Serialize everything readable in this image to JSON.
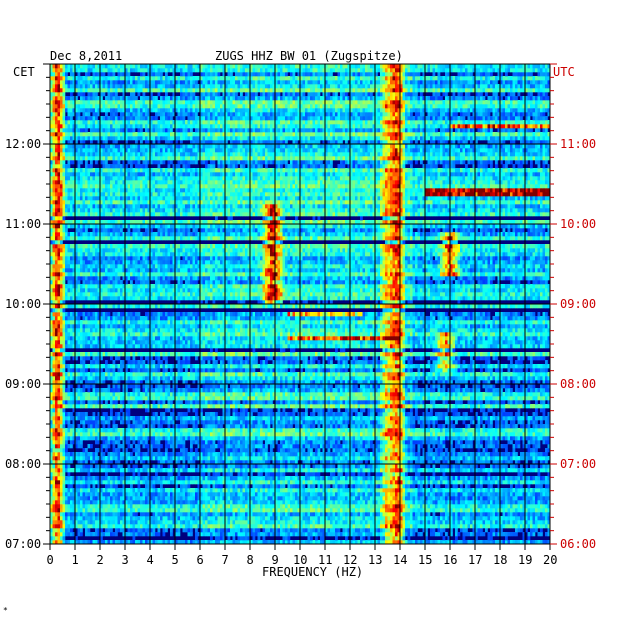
{
  "chart_data": {
    "type": "heatmap",
    "date": "Dec 8,2011",
    "station": "ZUGS HHZ BW 01 (Zugspitze)",
    "left_tz": "CET",
    "right_tz": "UTC",
    "xlabel": "FREQUENCY (HZ)",
    "xlim": [
      0,
      20
    ],
    "x_ticks": [
      "0",
      "1",
      "2",
      "3",
      "4",
      "5",
      "6",
      "7",
      "8",
      "9",
      "10",
      "11",
      "12",
      "13",
      "14",
      "15",
      "16",
      "17",
      "18",
      "19",
      "20"
    ],
    "cet_ticks": [
      "07:00",
      "08:00",
      "09:00",
      "10:00",
      "11:00",
      "12:00"
    ],
    "utc_ticks": [
      "06:00",
      "07:00",
      "08:00",
      "09:00",
      "10:00",
      "11:00"
    ],
    "time_range_cet": [
      "07:00",
      "13:00"
    ],
    "colormap": [
      "#00007f",
      "#0000ff",
      "#00bfff",
      "#7fff7f",
      "#ffff00",
      "#ff0000"
    ],
    "features": [
      {
        "kind": "persistent",
        "freq_hz": 0.3,
        "intensity": 0.7
      },
      {
        "kind": "persistent",
        "freq_hz": 13.9,
        "intensity": 0.65
      },
      {
        "kind": "persistent",
        "freq_hz": 13.5,
        "intensity": 0.4
      },
      {
        "kind": "burst",
        "freq_hz": 8.9,
        "from": "10:00",
        "to": "11:15",
        "intensity": 0.75
      },
      {
        "kind": "burst",
        "freq_hz": 16.0,
        "from": "10:20",
        "to": "10:55",
        "intensity": 0.6
      },
      {
        "kind": "burst",
        "freq_hz": 15.8,
        "from": "09:10",
        "to": "09:40",
        "intensity": 0.55
      },
      {
        "kind": "line",
        "from_hz": 15.0,
        "to_hz": 20.0,
        "time": "11:24",
        "intensity": 0.8
      },
      {
        "kind": "line",
        "from_hz": 16.0,
        "to_hz": 20.0,
        "time": "12:13",
        "intensity": 0.55
      },
      {
        "kind": "line",
        "from_hz": 9.5,
        "to_hz": 14.0,
        "time": "09:35",
        "intensity": 0.6
      },
      {
        "kind": "line",
        "from_hz": 9.5,
        "to_hz": 12.5,
        "time": "09:52",
        "intensity": 0.45
      }
    ]
  },
  "corner_mark": "*"
}
